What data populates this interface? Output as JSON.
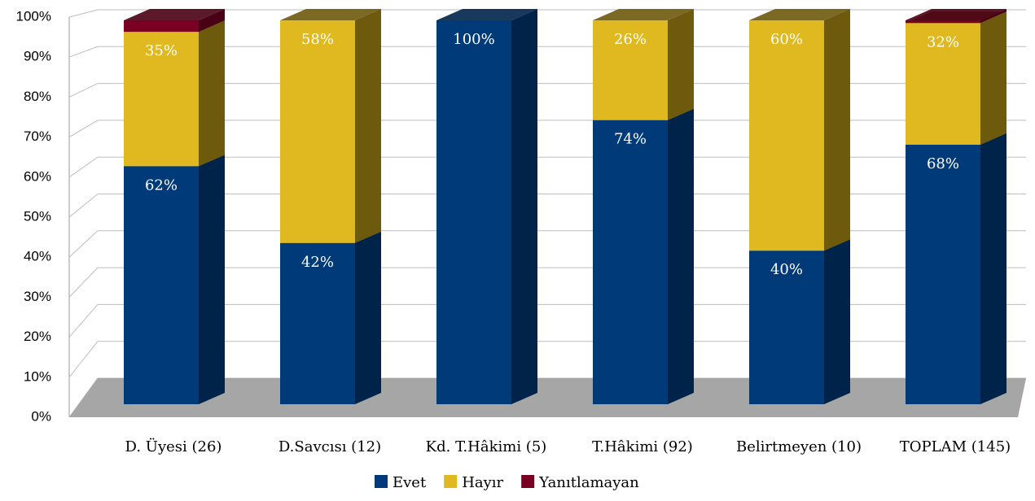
{
  "chart_data": {
    "type": "bar",
    "stacked": true,
    "categories": [
      "D. Üyesi (26)",
      "D.Savcısı (12)",
      "Kd. T.Hâkimi (5)",
      "T.Hâkimi (92)",
      "Belirtmeyen (10)",
      "TOPLAM (145)"
    ],
    "series": [
      {
        "name": "Evet",
        "color": "#003a78",
        "side": "#00234a",
        "values": [
          62,
          42,
          100,
          74,
          40,
          67.6
        ],
        "value_labels": [
          "62%",
          "42%",
          "100%",
          "74%",
          "40%",
          "68%"
        ]
      },
      {
        "name": "Hayır",
        "color": "#e0b820",
        "side": "#6e5a0c",
        "values": [
          35,
          58,
          0,
          26,
          60,
          31.7
        ],
        "value_labels": [
          "35%",
          "58%",
          null,
          "26%",
          "60%",
          "32%"
        ]
      },
      {
        "name": "Yanıtlamayan",
        "color": "#7a0022",
        "side": "#4a0014",
        "values": [
          3,
          0,
          0,
          0,
          0,
          0.7
        ]
      }
    ],
    "ylim": [
      0,
      100
    ],
    "yticks": [
      {
        "value": 0,
        "label": "0%"
      },
      {
        "value": 10,
        "label": "10%"
      },
      {
        "value": 20,
        "label": "20%"
      },
      {
        "value": 30,
        "label": "30%"
      },
      {
        "value": 40,
        "label": "40%"
      },
      {
        "value": 50,
        "label": "50%"
      },
      {
        "value": 60,
        "label": "60%"
      },
      {
        "value": 70,
        "label": "70%"
      },
      {
        "value": 80,
        "label": "80%"
      },
      {
        "value": 90,
        "label": "90%"
      },
      {
        "value": 100,
        "label": "100%"
      }
    ],
    "grid": true,
    "legend": "bottom"
  }
}
